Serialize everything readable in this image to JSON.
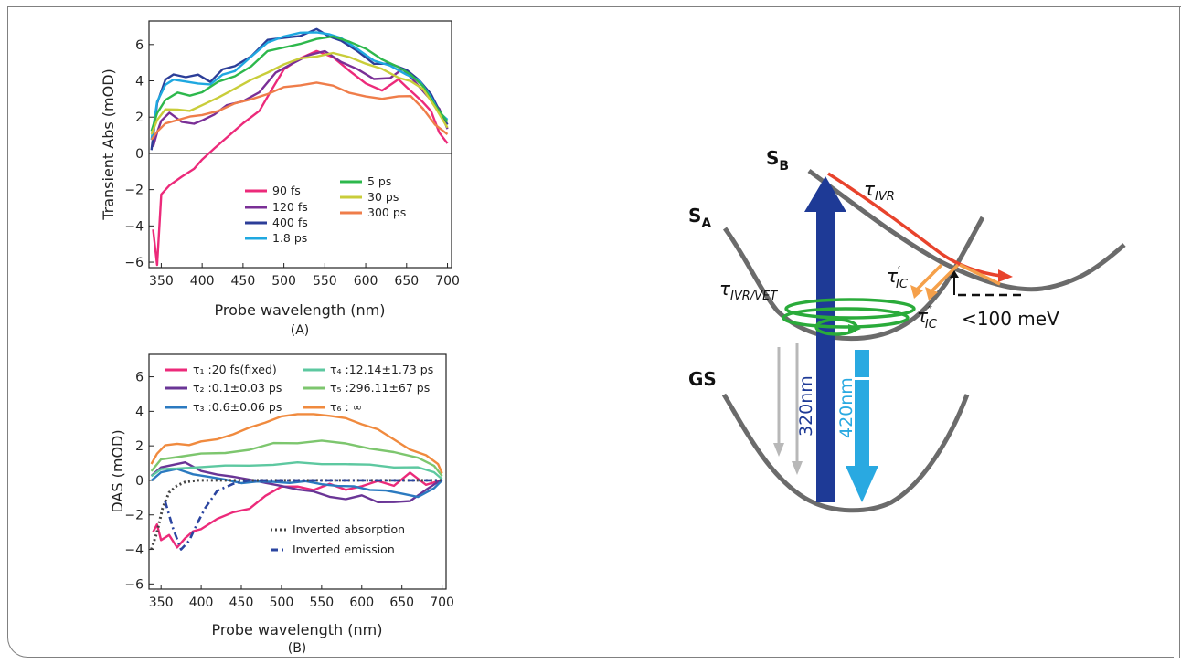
{
  "chart_data": [
    {
      "type": "line",
      "panel_label": "(A)",
      "xlabel": "Probe wavelength (nm)",
      "ylabel": "Transient Abs (mOD)",
      "xlim": [
        335,
        705
      ],
      "ylim": [
        -6.3,
        7.3
      ],
      "xticks": [
        350,
        400,
        450,
        500,
        550,
        600,
        650,
        700
      ],
      "yticks": [
        -6,
        -4,
        -2,
        0,
        2,
        4,
        6
      ],
      "zero_line": true,
      "legend_position": "lower-center",
      "series": [
        {
          "name": "90 fs",
          "color": "#ec2a7a",
          "x": [
            340,
            345,
            350,
            360,
            375,
            390,
            400,
            415,
            430,
            450,
            470,
            485,
            500,
            520,
            540,
            560,
            580,
            600,
            620,
            640,
            650,
            660,
            670,
            680,
            690,
            700
          ],
          "y": [
            -4.2,
            -6.2,
            -2.2,
            -1.8,
            -1.3,
            -0.8,
            -0.4,
            0.3,
            0.9,
            1.6,
            2.4,
            3.5,
            4.6,
            5.3,
            5.6,
            5.3,
            4.6,
            3.8,
            3.5,
            4.1,
            3.6,
            3.3,
            2.8,
            2.3,
            1.2,
            0.5
          ]
        },
        {
          "name": "120 fs",
          "color": "#7a2f96",
          "x": [
            340,
            345,
            350,
            360,
            375,
            390,
            400,
            415,
            430,
            450,
            470,
            490,
            510,
            530,
            550,
            570,
            590,
            610,
            630,
            645,
            660,
            675,
            690,
            700
          ],
          "y": [
            0.3,
            1.2,
            1.8,
            2.2,
            1.8,
            1.6,
            1.8,
            2.2,
            2.6,
            2.9,
            3.4,
            4.4,
            5.0,
            5.4,
            5.6,
            5.1,
            4.6,
            4.1,
            4.2,
            4.6,
            4.0,
            3.2,
            2.4,
            1.4
          ]
        },
        {
          "name": "400 fs",
          "color": "#2c3e98",
          "x": [
            338,
            345,
            355,
            365,
            380,
            395,
            410,
            425,
            440,
            460,
            480,
            500,
            520,
            540,
            555,
            570,
            590,
            610,
            630,
            650,
            665,
            680,
            690,
            700
          ],
          "y": [
            0.2,
            2.8,
            4.0,
            4.4,
            4.2,
            4.3,
            4.0,
            4.6,
            4.8,
            5.4,
            6.2,
            6.4,
            6.5,
            6.8,
            6.5,
            6.2,
            5.6,
            5.0,
            4.9,
            4.6,
            4.1,
            3.2,
            2.4,
            1.6
          ]
        },
        {
          "name": "1.8 ps",
          "color": "#1fa8e0",
          "x": [
            338,
            345,
            355,
            365,
            380,
            395,
            410,
            425,
            440,
            460,
            480,
            500,
            520,
            540,
            555,
            570,
            590,
            610,
            630,
            650,
            665,
            680,
            690,
            700
          ],
          "y": [
            0.8,
            2.8,
            3.8,
            4.1,
            3.9,
            3.9,
            3.8,
            4.3,
            4.6,
            5.3,
            6.1,
            6.5,
            6.6,
            6.7,
            6.6,
            6.3,
            5.8,
            5.1,
            4.8,
            4.4,
            4.0,
            3.1,
            2.3,
            1.8
          ]
        },
        {
          "name": "5 ps",
          "color": "#2db84c",
          "x": [
            338,
            345,
            355,
            370,
            385,
            400,
            420,
            440,
            460,
            480,
            500,
            520,
            540,
            560,
            580,
            600,
            620,
            640,
            655,
            670,
            685,
            700
          ],
          "y": [
            1.2,
            2.2,
            3.0,
            3.3,
            3.2,
            3.4,
            3.9,
            4.3,
            4.8,
            5.6,
            5.9,
            6.0,
            6.3,
            6.5,
            6.1,
            5.8,
            5.2,
            4.7,
            4.4,
            3.7,
            2.6,
            1.8
          ]
        },
        {
          "name": "30 ps",
          "color": "#c9cd3a",
          "x": [
            338,
            345,
            355,
            370,
            385,
            400,
            420,
            440,
            460,
            480,
            500,
            520,
            540,
            560,
            580,
            600,
            620,
            640,
            655,
            670,
            685,
            700
          ],
          "y": [
            1.0,
            1.9,
            2.4,
            2.4,
            2.4,
            2.6,
            3.1,
            3.6,
            4.0,
            4.5,
            4.9,
            5.2,
            5.4,
            5.5,
            5.3,
            5.0,
            4.6,
            4.2,
            4.0,
            3.5,
            2.6,
            1.4
          ]
        },
        {
          "name": "300 ps",
          "color": "#ef7d4a",
          "x": [
            338,
            345,
            355,
            370,
            385,
            400,
            420,
            440,
            460,
            480,
            500,
            520,
            540,
            560,
            580,
            600,
            620,
            640,
            655,
            670,
            685,
            700
          ],
          "y": [
            0.8,
            1.2,
            1.6,
            1.9,
            2.0,
            2.1,
            2.4,
            2.7,
            3.0,
            3.3,
            3.6,
            3.8,
            3.9,
            3.7,
            3.4,
            3.1,
            3.0,
            3.2,
            3.1,
            2.5,
            1.6,
            1.0
          ]
        }
      ]
    },
    {
      "type": "line",
      "panel_label": "(B)",
      "xlabel": "Probe wavelength (nm)",
      "ylabel": "DAS (mOD)",
      "xlim": [
        335,
        705
      ],
      "ylim": [
        -6.3,
        7.3
      ],
      "xticks": [
        350,
        400,
        450,
        500,
        550,
        600,
        650,
        700
      ],
      "yticks": [
        -6,
        -4,
        -2,
        0,
        2,
        4,
        6
      ],
      "legend_position": "top",
      "series": [
        {
          "name": "τ₁ :20 fs(fixed)",
          "color": "#ec2a7a",
          "x": [
            340,
            345,
            350,
            360,
            370,
            380,
            390,
            400,
            420,
            440,
            460,
            480,
            500,
            520,
            540,
            560,
            580,
            600,
            620,
            640,
            660,
            680,
            700
          ],
          "y": [
            -3.0,
            -2.6,
            -3.4,
            -3.2,
            -3.9,
            -3.3,
            -3.0,
            -2.8,
            -2.2,
            -1.9,
            -1.6,
            -0.9,
            -0.4,
            -0.3,
            -0.6,
            -0.2,
            -0.5,
            -0.4,
            0.0,
            -0.3,
            0.4,
            -0.2,
            0.0
          ]
        },
        {
          "name": "τ₂ :0.1±0.03 ps",
          "color": "#6a3596",
          "x": [
            338,
            350,
            365,
            380,
            400,
            420,
            440,
            460,
            480,
            500,
            520,
            540,
            560,
            580,
            600,
            620,
            640,
            660,
            680,
            700
          ],
          "y": [
            0.2,
            0.8,
            0.9,
            1.0,
            0.6,
            0.3,
            0.2,
            0.1,
            -0.2,
            -0.3,
            -0.5,
            -0.7,
            -0.9,
            -1.1,
            -0.9,
            -1.2,
            -1.3,
            -1.2,
            -0.5,
            0.0
          ]
        },
        {
          "name": "τ₃ :0.6±0.06 ps",
          "color": "#2b7ac0",
          "x": [
            338,
            350,
            370,
            390,
            410,
            430,
            450,
            470,
            490,
            510,
            530,
            550,
            570,
            590,
            610,
            630,
            650,
            670,
            690,
            700
          ],
          "y": [
            0.0,
            0.5,
            0.6,
            0.4,
            0.2,
            0.0,
            -0.1,
            -0.1,
            -0.1,
            -0.1,
            -0.1,
            -0.2,
            -0.3,
            -0.4,
            -0.5,
            -0.6,
            -0.8,
            -0.9,
            -0.5,
            0.0
          ]
        },
        {
          "name": "τ₄ :12.14±1.73 ps",
          "color": "#5dc8a0",
          "x": [
            338,
            350,
            370,
            400,
            430,
            460,
            490,
            520,
            550,
            580,
            610,
            640,
            670,
            690,
            700
          ],
          "y": [
            0.3,
            0.6,
            0.7,
            0.8,
            0.8,
            0.9,
            0.9,
            1.0,
            1.0,
            0.9,
            0.9,
            0.8,
            0.7,
            0.5,
            0.1
          ]
        },
        {
          "name": "τ₅ :296.11±67 ps",
          "color": "#7dc66e",
          "x": [
            338,
            350,
            370,
            400,
            430,
            460,
            490,
            520,
            550,
            580,
            610,
            640,
            670,
            690,
            700
          ],
          "y": [
            0.5,
            1.2,
            1.4,
            1.5,
            1.6,
            1.8,
            2.1,
            2.2,
            2.3,
            2.1,
            1.9,
            1.6,
            1.3,
            0.9,
            0.2
          ]
        },
        {
          "name": "τ₆ : ∞",
          "color": "#f08a3e",
          "x": [
            338,
            345,
            355,
            370,
            385,
            400,
            420,
            440,
            460,
            480,
            500,
            520,
            540,
            560,
            580,
            600,
            620,
            640,
            660,
            680,
            695,
            700
          ],
          "y": [
            0.9,
            1.6,
            2.0,
            2.1,
            2.1,
            2.2,
            2.4,
            2.7,
            3.0,
            3.4,
            3.7,
            3.8,
            3.9,
            3.7,
            3.6,
            3.3,
            2.9,
            2.4,
            1.8,
            1.4,
            1.0,
            0.4
          ]
        },
        {
          "name": "Inverted absorption",
          "color": "#444444",
          "dash": "dotted",
          "x": [
            338,
            345,
            352,
            360,
            370,
            380,
            395,
            420,
            460,
            700
          ],
          "y": [
            -4.0,
            -3.0,
            -1.6,
            -0.7,
            -0.3,
            -0.1,
            0.0,
            0.0,
            0.0,
            0.0
          ]
        },
        {
          "name": "Inverted emission",
          "color": "#2b45a0",
          "dash": "dashdot",
          "x": [
            355,
            365,
            375,
            385,
            395,
            405,
            420,
            440,
            460,
            700
          ],
          "y": [
            -1.2,
            -2.8,
            -4.0,
            -3.5,
            -2.5,
            -1.6,
            -0.6,
            -0.2,
            0.0,
            0.0
          ]
        }
      ]
    }
  ],
  "diagram": {
    "states": [
      "S",
      "S",
      "GS"
    ],
    "state_subscripts": [
      "B",
      "A",
      ""
    ],
    "labels": {
      "tau_ivr": "τ",
      "tau_ivr_sub": "IVR",
      "tau_ic1": "τ",
      "tau_ic1_sup": "′",
      "tau_ic1_sub": "IC",
      "tau_ic2": "τ",
      "tau_ic2_sup": "″",
      "tau_ic2_sub": "IC",
      "tau_ivr_vet": "τ",
      "tau_ivr_vet_sub": "IVR/VET",
      "energy_gap": "<100 meV",
      "pump": "320nm",
      "emission": "420nm"
    },
    "colors": {
      "pump": "#1e3a96",
      "emission": "#29a9e1",
      "ivr_arrow": "#e8432c",
      "ic_arrow": "#f5a04a",
      "vet_coil": "#2aab3a",
      "relax_arrows": "#b8b8b8",
      "surfaces": "#6b6b6b"
    }
  }
}
